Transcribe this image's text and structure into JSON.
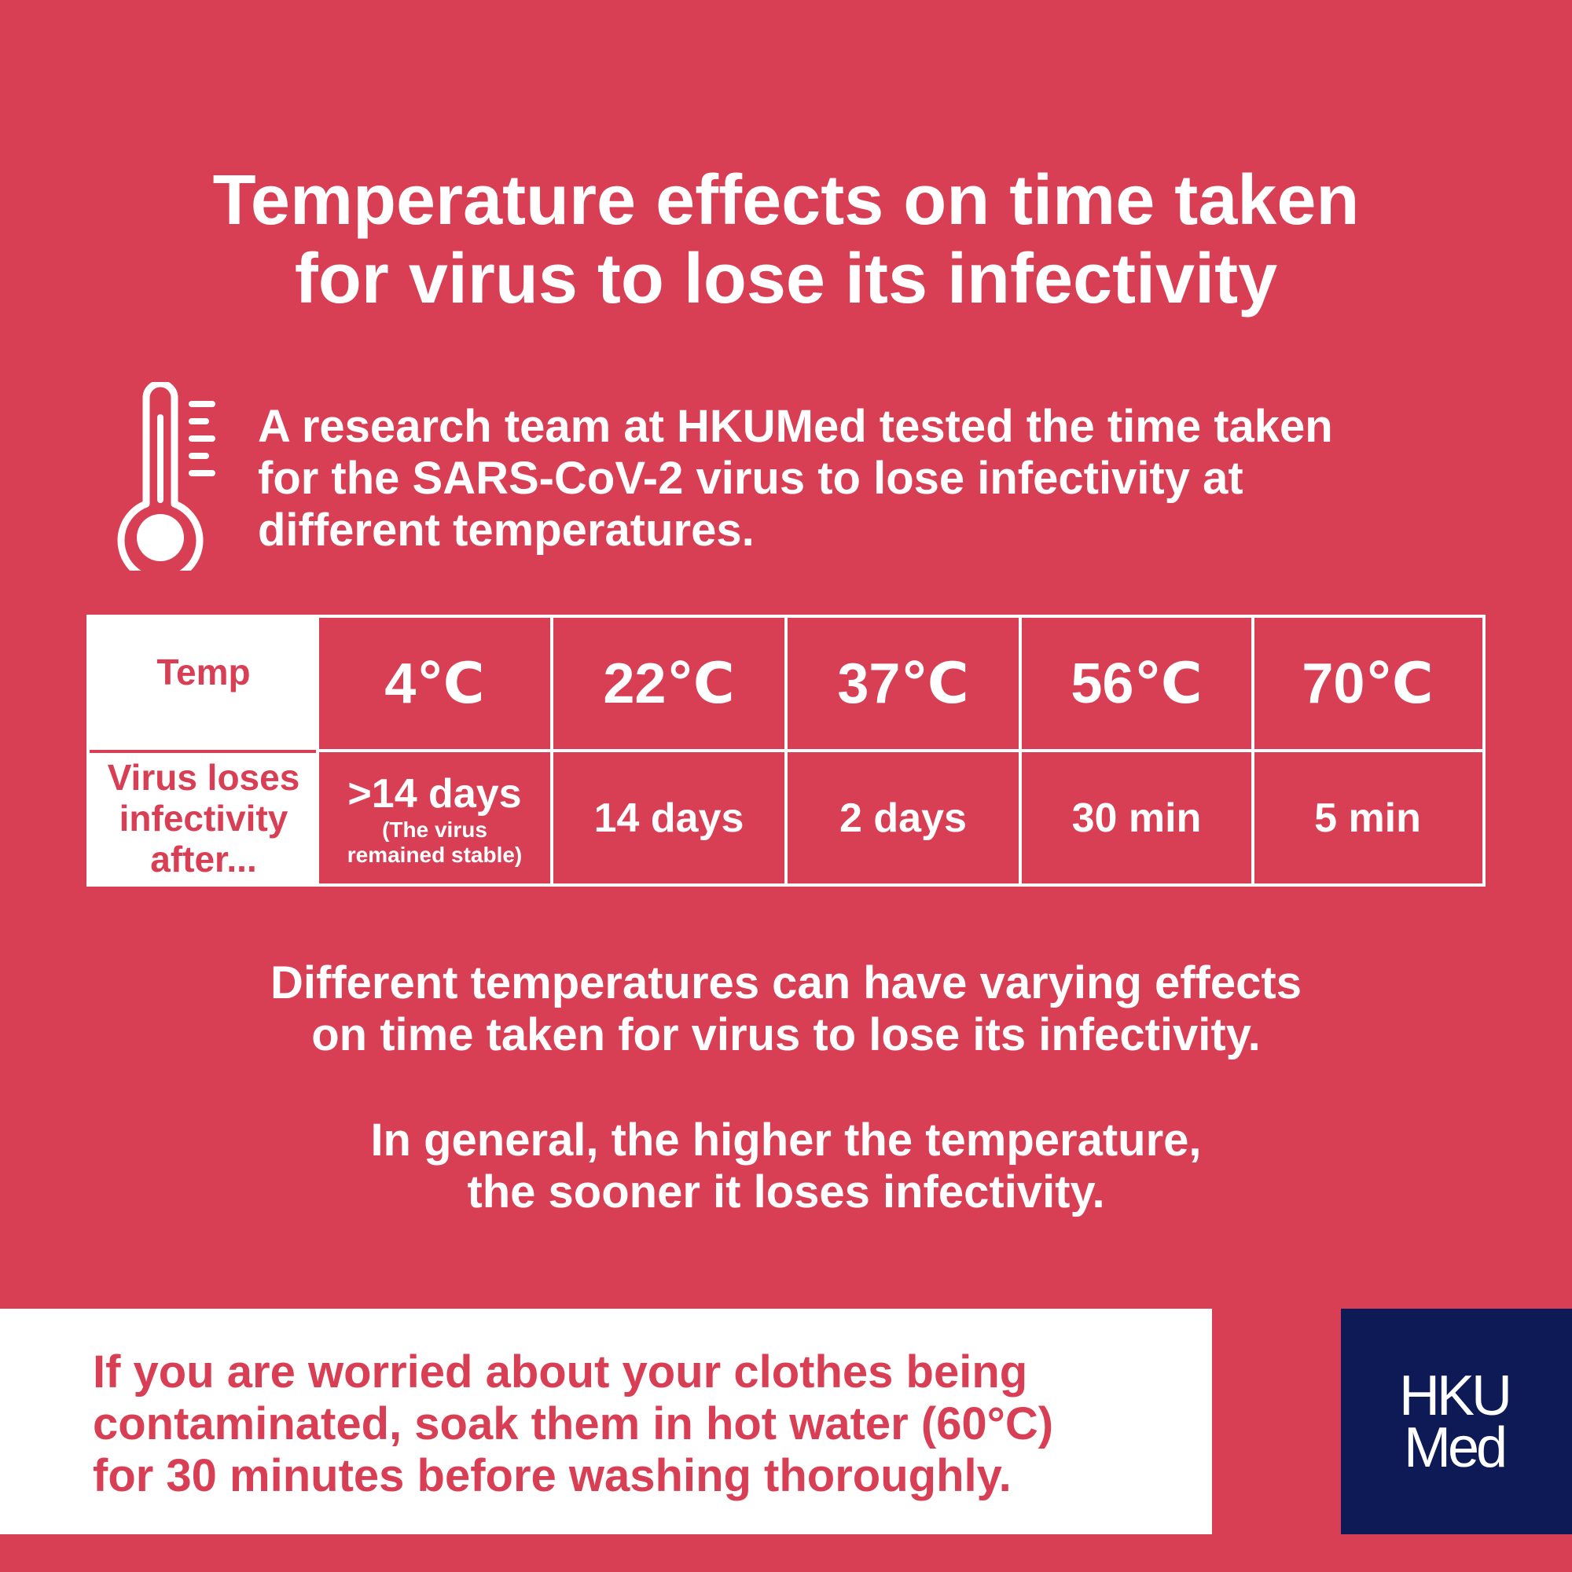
{
  "title": {
    "line1": "Temperature effects on time taken",
    "line2": "for virus to lose its infectivity"
  },
  "icon": "thermometer-icon",
  "intro": {
    "line1": "A research team at HKUMed tested the time taken",
    "line2": "for the SARS-CoV-2 virus to lose infectivity at",
    "line3": "different temperatures."
  },
  "table": {
    "header_label": "Temp",
    "row_label": {
      "line1": "Virus loses",
      "line2": "infectivity",
      "line3": "after..."
    },
    "columns": [
      {
        "temp": "4℃",
        "value": ">14 days",
        "note_line1": "(The virus",
        "note_line2": "remained stable)"
      },
      {
        "temp": "22℃",
        "value": "14 days"
      },
      {
        "temp": "37℃",
        "value": "2 days"
      },
      {
        "temp": "56℃",
        "value": "30 min"
      },
      {
        "temp": "70℃",
        "value": "5 min"
      }
    ]
  },
  "summary1": {
    "line1": "Different temperatures can have varying effects",
    "line2": "on time taken for virus to lose its infectivity."
  },
  "summary2": {
    "line1": "In general, the higher the temperature,",
    "line2": "the sooner it loses infectivity."
  },
  "tip": {
    "line1": "If you are worried about your clothes being",
    "line2": "contaminated, soak them in hot water (60°C)",
    "line3": "for 30 minutes before washing thoroughly."
  },
  "logo": {
    "line1": "HKU",
    "line2": "Med"
  },
  "colors": {
    "background": "#d83f55",
    "text": "#ffffff",
    "logo_background": "#0e1a55"
  }
}
